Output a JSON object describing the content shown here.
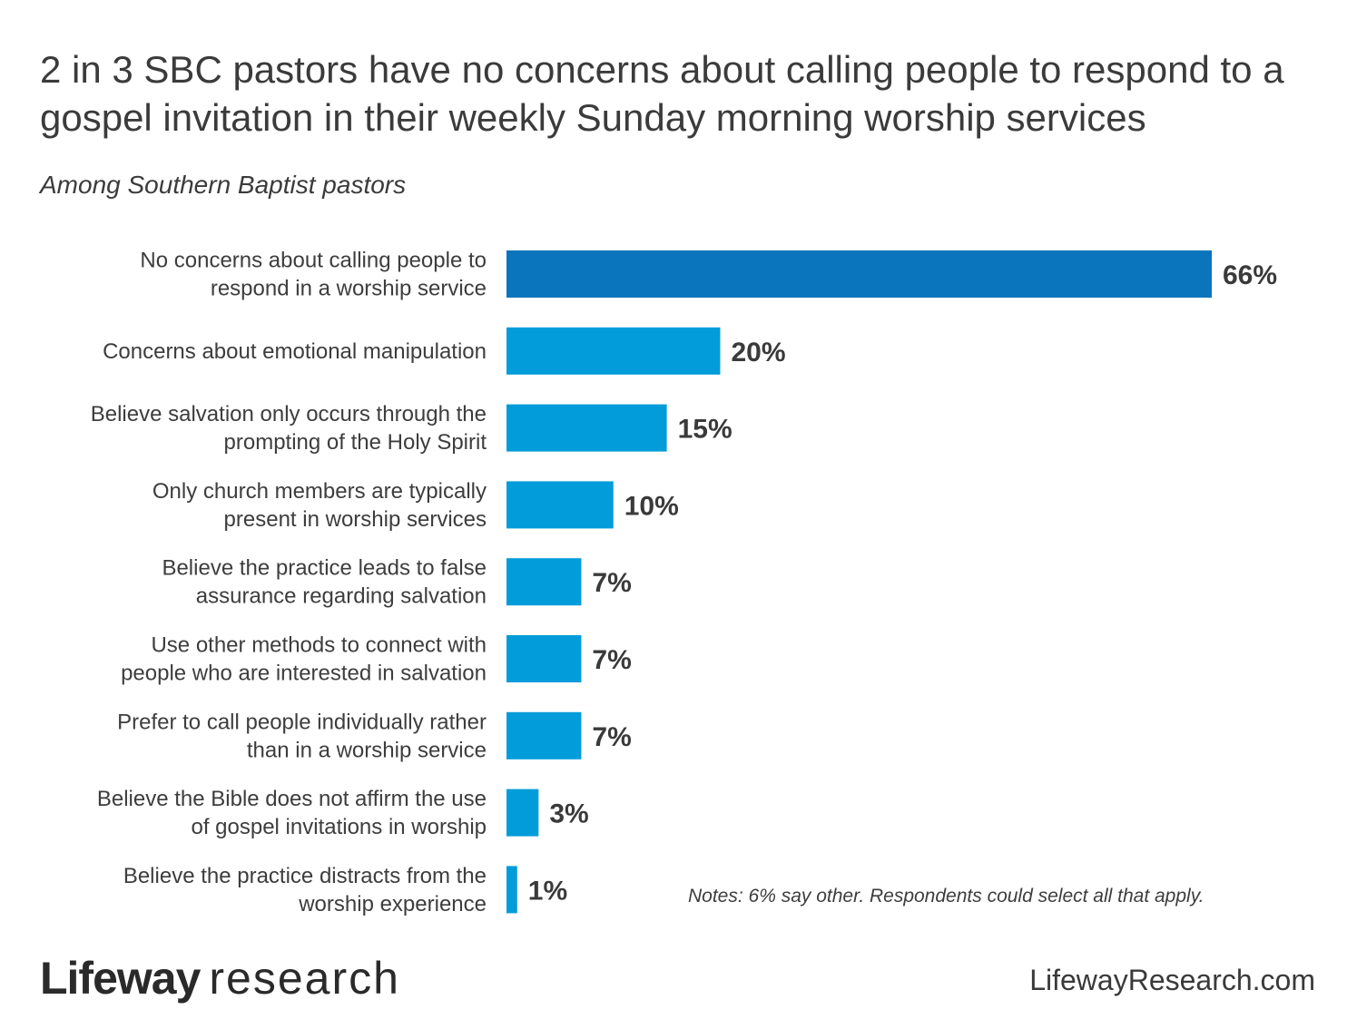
{
  "header": {
    "title": "2 in 3 SBC pastors have no concerns about calling people to respond to a gospel invitation in their weekly Sunday morning worship services",
    "subtitle": "Among Southern Baptist pastors"
  },
  "chart_data": {
    "type": "bar",
    "orientation": "horizontal",
    "categories": [
      [
        "No concerns about calling people to",
        "respond in a worship service"
      ],
      [
        "Concerns about emotional manipulation"
      ],
      [
        "Believe salvation only occurs through the",
        "prompting of the Holy Spirit"
      ],
      [
        "Only church members are typically",
        "present in worship services"
      ],
      [
        "Believe the practice leads to false",
        "assurance regarding salvation"
      ],
      [
        "Use other methods to connect with",
        "people who are interested in salvation"
      ],
      [
        "Prefer to call people individually rather",
        "than in a worship service"
      ],
      [
        "Believe the Bible does not affirm the use",
        "of gospel invitations in worship"
      ],
      [
        "Believe the practice distracts from the",
        "worship experience"
      ]
    ],
    "values": [
      66,
      20,
      15,
      10,
      7,
      7,
      7,
      3,
      1
    ],
    "value_labels": [
      "66%",
      "20%",
      "15%",
      "10%",
      "7%",
      "7%",
      "7%",
      "3%",
      "1%"
    ],
    "colors": [
      "#0a75bc",
      "#019cd9",
      "#019cd9",
      "#019cd9",
      "#019cd9",
      "#019cd9",
      "#019cd9",
      "#019cd9",
      "#019cd9"
    ],
    "xlim": [
      0,
      66
    ],
    "grid": false
  },
  "notes": "Notes: 6% say other. Respondents could select all that apply.",
  "footer": {
    "logo_bold": "Lifeway",
    "logo_light": "research",
    "website": "LifewayResearch.com"
  }
}
